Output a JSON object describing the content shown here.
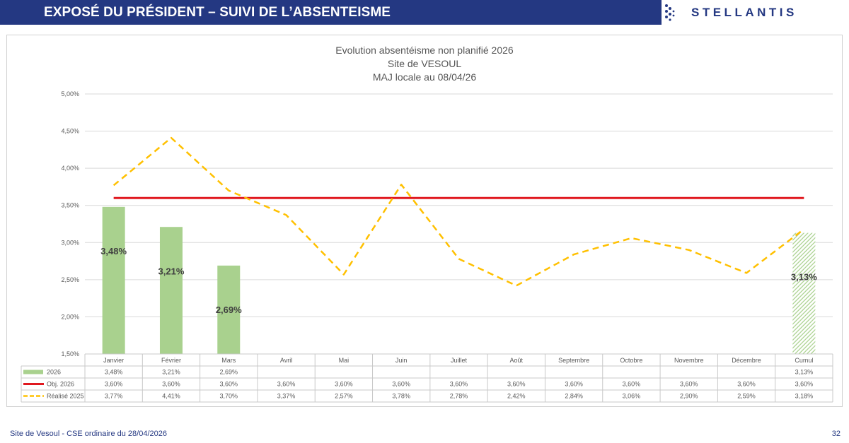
{
  "header": {
    "title": "EXPOSÉ DU PRÉSIDENT – SUIVI DE L’ABSENTEISME",
    "logo_text": "STELLANTIS",
    "bar_color": "#243882"
  },
  "chart_data": {
    "type": "bar",
    "title_lines": [
      "Evolution absentéisme non planifié 2026",
      "Site de VESOUL",
      "MAJ locale au 08/04/26"
    ],
    "categories": [
      "Janvier",
      "Février",
      "Mars",
      "Avril",
      "Mai",
      "Juin",
      "Juillet",
      "Août",
      "Septembre",
      "Octobre",
      "Novembre",
      "Décembre",
      "Cumul"
    ],
    "ylim": [
      1.5,
      5.0
    ],
    "yticks": [
      "1,50%",
      "2,00%",
      "2,50%",
      "3,00%",
      "3,50%",
      "4,00%",
      "4,50%",
      "5,00%"
    ],
    "ytick_values": [
      1.5,
      2.0,
      2.5,
      3.0,
      3.5,
      4.0,
      4.5,
      5.0
    ],
    "grid": true,
    "series": [
      {
        "name": "2026",
        "kind": "bar",
        "color": "#a9d18e",
        "values": [
          3.48,
          3.21,
          2.69,
          null,
          null,
          null,
          null,
          null,
          null,
          null,
          null,
          null,
          3.13
        ],
        "labels": [
          "3,48%",
          "3,21%",
          "2,69%",
          "",
          "",
          "",
          "",
          "",
          "",
          "",
          "",
          "",
          "3,13%"
        ],
        "bar_labels": [
          "3,48%",
          "3,21%",
          "2,69%",
          "",
          "",
          "",
          "",
          "",
          "",
          "",
          "",
          "",
          "3,13%"
        ]
      },
      {
        "name": "Obj. 2026",
        "kind": "line",
        "color": "#e0191f",
        "values": [
          3.6,
          3.6,
          3.6,
          3.6,
          3.6,
          3.6,
          3.6,
          3.6,
          3.6,
          3.6,
          3.6,
          3.6,
          3.6
        ],
        "labels": [
          "3,60%",
          "3,60%",
          "3,60%",
          "3,60%",
          "3,60%",
          "3,60%",
          "3,60%",
          "3,60%",
          "3,60%",
          "3,60%",
          "3,60%",
          "3,60%",
          "3,60%"
        ]
      },
      {
        "name": "Réalisé 2025",
        "kind": "dashed-line",
        "color": "#ffc000",
        "values": [
          3.77,
          4.41,
          3.7,
          3.37,
          2.57,
          3.78,
          2.78,
          2.42,
          2.84,
          3.06,
          2.9,
          2.59,
          3.18
        ],
        "labels": [
          "3,77%",
          "4,41%",
          "3,70%",
          "3,37%",
          "2,57%",
          "3,78%",
          "2,78%",
          "2,42%",
          "2,84%",
          "3,06%",
          "2,90%",
          "2,59%",
          "3,18%"
        ]
      }
    ]
  },
  "footer": {
    "left": "Site de Vesoul - CSE ordinaire du 28/04/2026",
    "page": "32"
  }
}
